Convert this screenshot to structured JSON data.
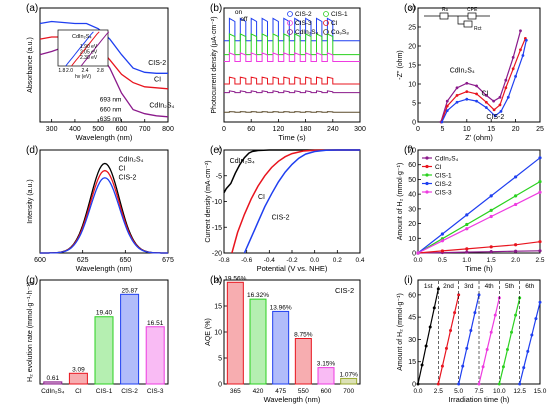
{
  "colors": {
    "CdIn2S4": "#8b1a8b",
    "CI": "#e8141e",
    "CIS-1": "#2ad11f",
    "CIS-2": "#1f3ff0",
    "CIS-3": "#ee3be0",
    "Co9S8": "#5a4a2a",
    "black": "#000000"
  },
  "chart_data": [
    {
      "panel": "(a)",
      "type": "line",
      "xlabel": "Wavelength (nm)",
      "ylabel": "Absorbance (a.u.)",
      "xlim": [
        250,
        800
      ],
      "xticks": [
        300,
        400,
        500,
        600,
        700,
        800
      ],
      "x": [
        250,
        300,
        350,
        400,
        450,
        500,
        550,
        600,
        650,
        700,
        750,
        800
      ],
      "series": [
        {
          "name": "CIS-2",
          "values": [
            0.95,
            0.97,
            0.96,
            0.95,
            0.95,
            0.9,
            0.8,
            0.65,
            0.52,
            0.48,
            0.47,
            0.47
          ]
        },
        {
          "name": "CI",
          "values": [
            0.8,
            0.82,
            0.82,
            0.8,
            0.78,
            0.72,
            0.6,
            0.46,
            0.38,
            0.34,
            0.33,
            0.32
          ]
        },
        {
          "name": "CdIn2S4",
          "values": [
            0.65,
            0.68,
            0.72,
            0.74,
            0.73,
            0.68,
            0.52,
            0.28,
            0.12,
            0.08,
            0.06,
            0.05
          ]
        }
      ],
      "labels": [
        "CIS-2",
        "CI",
        "CdIn2S4"
      ],
      "edges": [
        "693 nm",
        "660 nm",
        "635 nm"
      ],
      "inset": {
        "label": "CdIn2S4",
        "annotations": [
          "1.90 eV",
          "2.05 eV",
          "2.30 eV"
        ],
        "xticks": [
          "1.8",
          "2.0",
          "2.4",
          "2.8"
        ],
        "xlabel": "hv (eV)"
      }
    },
    {
      "panel": "(b)",
      "type": "line",
      "xlabel": "Time (s)",
      "ylabel": "Photocurrent density (μA·cm⁻²)",
      "xlim": [
        0,
        300
      ],
      "xticks": [
        0,
        60,
        120,
        180,
        240,
        300
      ],
      "annotations": [
        "on",
        "off"
      ],
      "legend": [
        "CIS-2",
        "CIS-1",
        "CIS-3",
        "CI",
        "CdIn2S4",
        "Co9S8"
      ],
      "series": [
        {
          "name": "CIS-2",
          "on": 3.0,
          "off": 2.35
        },
        {
          "name": "CIS-1",
          "on": 2.55,
          "off": 1.95
        },
        {
          "name": "CIS-3",
          "on": 2.0,
          "off": 1.75
        },
        {
          "name": "CI",
          "on": 1.3,
          "off": 1.1
        },
        {
          "name": "CdIn2S4",
          "on": 0.9,
          "off": 0.85
        },
        {
          "name": "Co9S8",
          "on": 0.3,
          "off": 0.28
        }
      ],
      "cycles": 10,
      "period": 24
    },
    {
      "panel": "(c)",
      "type": "line",
      "xlabel": "Z' (ohm)",
      "ylabel": "-Z'' (ohm)",
      "xlim": [
        0,
        25
      ],
      "xticks": [
        0,
        5,
        10,
        15,
        20,
        25
      ],
      "ylim": [
        0,
        30
      ],
      "yticks": [
        0,
        5,
        10,
        15,
        20,
        25,
        30
      ],
      "series": [
        {
          "name": "CdIn2S4",
          "x": [
            4.7,
            6,
            8,
            10,
            12,
            14,
            15.5,
            16.8,
            18,
            19.5,
            21
          ],
          "y": [
            0,
            5.5,
            9,
            10.2,
            9.5,
            7,
            5.5,
            6.5,
            11,
            17,
            24
          ]
        },
        {
          "name": "CI",
          "x": [
            4.8,
            6,
            8,
            10,
            12,
            14,
            15.6,
            16.8,
            18,
            19.5,
            21,
            22
          ],
          "y": [
            0,
            4.2,
            7,
            8,
            7.4,
            5.2,
            3.2,
            4.5,
            9,
            14,
            19,
            22
          ]
        },
        {
          "name": "CIS-2",
          "x": [
            4.9,
            6,
            8,
            10,
            12,
            14,
            15.8,
            17,
            18.5,
            20,
            21.5,
            22.2
          ],
          "y": [
            0,
            3,
            5.2,
            6,
            5.5,
            3.8,
            1.6,
            2.8,
            6.5,
            12,
            17.5,
            21.5
          ]
        }
      ],
      "labels": [
        "CdIn2S4",
        "CI",
        "CIS-2"
      ],
      "circuit": [
        "Rs",
        "CPE",
        "Rct"
      ]
    },
    {
      "panel": "(d)",
      "type": "line",
      "xlabel": "Wavelength (nm)",
      "ylabel": "Intensity (a.u.)",
      "xlim": [
        600,
        675
      ],
      "xticks": [
        600,
        625,
        650,
        675
      ],
      "series": [
        {
          "name": "CdIn2S4",
          "peak": 1.0
        },
        {
          "name": "CI",
          "peak": 0.92
        },
        {
          "name": "CIS-2",
          "peak": 0.84
        }
      ],
      "peak_x": 638,
      "width": 8.5
    },
    {
      "panel": "(e)",
      "type": "line",
      "xlabel": "Potential (V vs. NHE)",
      "ylabel": "Current density (mA·cm⁻²)",
      "xlim": [
        -0.8,
        0.4
      ],
      "xticks": [
        -0.8,
        -0.6,
        -0.4,
        -0.2,
        0.0,
        0.2,
        0.4
      ],
      "ylim": [
        -20,
        0
      ],
      "yticks": [
        -20,
        -15,
        -10,
        -5,
        0
      ],
      "series": [
        {
          "name": "CdIn2S4",
          "x": [
            -0.8,
            -0.78,
            -0.74,
            -0.7,
            -0.66,
            -0.62,
            -0.58,
            -0.55,
            -0.5,
            -0.4,
            -0.2,
            0.0,
            0.2,
            0.4
          ],
          "y": [
            -8.3,
            -7.5,
            -6.5,
            -4.5,
            -2.8,
            -1.5,
            -0.6,
            -0.3,
            -0.1,
            0,
            0,
            0,
            0,
            0
          ]
        },
        {
          "name": "CI",
          "x": [
            -0.73,
            -0.68,
            -0.62,
            -0.56,
            -0.5,
            -0.44,
            -0.38,
            -0.32,
            -0.26,
            -0.2,
            -0.1,
            0.0,
            0.2,
            0.4
          ],
          "y": [
            -20,
            -16,
            -12.5,
            -9.5,
            -7,
            -5,
            -3.4,
            -2.2,
            -1.3,
            -0.7,
            -0.2,
            -0.05,
            0,
            0
          ]
        },
        {
          "name": "CIS-2",
          "x": [
            -0.62,
            -0.56,
            -0.5,
            -0.44,
            -0.38,
            -0.32,
            -0.26,
            -0.2,
            -0.14,
            -0.08,
            0.0,
            0.1,
            0.2,
            0.4
          ],
          "y": [
            -20,
            -17,
            -14,
            -11,
            -8.5,
            -6.2,
            -4.3,
            -2.8,
            -1.6,
            -0.8,
            -0.3,
            -0.05,
            0,
            0
          ]
        }
      ],
      "labels": [
        "CdIn2S4",
        "CI",
        "CIS-2"
      ]
    },
    {
      "panel": "(f)",
      "type": "line",
      "xlabel": "Time (h)",
      "ylabel": "Amount of H2 (mmol·g⁻¹)",
      "xlim": [
        0,
        2.5
      ],
      "xticks": [
        0.0,
        0.5,
        1.0,
        1.5,
        2.0,
        2.5
      ],
      "ylim": [
        0,
        70
      ],
      "yticks": [
        0,
        10,
        20,
        30,
        40,
        50,
        60,
        70
      ],
      "x": [
        0,
        0.5,
        1.0,
        1.5,
        2.0,
        2.5
      ],
      "series": [
        {
          "name": "CdIn2S4",
          "values": [
            0,
            0.3,
            0.6,
            0.9,
            1.2,
            1.5
          ]
        },
        {
          "name": "CI",
          "values": [
            0,
            1.4,
            2.8,
            4.2,
            5.6,
            7.7
          ]
        },
        {
          "name": "CIS-1",
          "values": [
            0,
            9.7,
            19.4,
            29,
            38.8,
            48.5
          ]
        },
        {
          "name": "CIS-2",
          "values": [
            0,
            12.9,
            25.9,
            38.8,
            51.7,
            64.7
          ]
        },
        {
          "name": "CIS-3",
          "values": [
            0,
            8.3,
            16.5,
            24.8,
            33,
            41.3
          ]
        }
      ],
      "legend": [
        "CdIn2S4",
        "CI",
        "CIS-1",
        "CIS-2",
        "CIS-3"
      ]
    },
    {
      "panel": "(g)",
      "type": "bar",
      "xlabel": "",
      "ylabel": "H2 evolution rate (mmol·g⁻¹·h⁻¹)",
      "ylim": [
        0,
        30
      ],
      "categories": [
        "CdIn2S4",
        "CI",
        "CIS-1",
        "CIS-2",
        "CIS-3"
      ],
      "values": [
        0.61,
        3.09,
        19.4,
        25.87,
        16.51
      ],
      "data_labels": [
        "0.61",
        "3.09",
        "19.40",
        "25.87",
        "16.51"
      ]
    },
    {
      "panel": "(h)",
      "type": "bar",
      "xlabel": "Wavelength (nm)",
      "ylabel": "AQE (%)",
      "ylim": [
        0,
        20
      ],
      "yticks": [
        0,
        5,
        10,
        15,
        20
      ],
      "categories": [
        "365",
        "420",
        "475",
        "550",
        "600",
        "700"
      ],
      "values": [
        19.56,
        16.32,
        13.96,
        8.75,
        3.15,
        1.07
      ],
      "data_labels": [
        "19.56%",
        "16.32%",
        "13.96%",
        "8.75%",
        "3.15%",
        "1.07%"
      ],
      "label": "CIS-2"
    },
    {
      "panel": "(i)",
      "type": "line",
      "xlabel": "Irradiation time (h)",
      "ylabel": "Amount of H2 (mmol·g⁻¹)",
      "xlim": [
        0,
        15
      ],
      "xticks": [
        0.0,
        2.5,
        5.0,
        7.5,
        10.0,
        12.5,
        15.0
      ],
      "ylim": [
        0,
        70
      ],
      "yticks": [
        0,
        15,
        30,
        45,
        60
      ],
      "cycles": [
        {
          "name": "1st",
          "start": 0,
          "end": 2.5,
          "final": 64
        },
        {
          "name": "2nd",
          "start": 2.5,
          "end": 5.0,
          "final": 60
        },
        {
          "name": "3rd",
          "start": 5.0,
          "end": 7.5,
          "final": 60
        },
        {
          "name": "4th",
          "start": 7.5,
          "end": 10.0,
          "final": 58
        },
        {
          "name": "5th",
          "start": 10.0,
          "end": 12.5,
          "final": 58
        },
        {
          "name": "6th",
          "start": 12.5,
          "end": 15.0,
          "final": 55
        }
      ],
      "cycle_colors": [
        "#000000",
        "#e8141e",
        "#1f3ff0",
        "#ee3be0",
        "#2ad11f",
        "#1f3ff0"
      ]
    }
  ]
}
